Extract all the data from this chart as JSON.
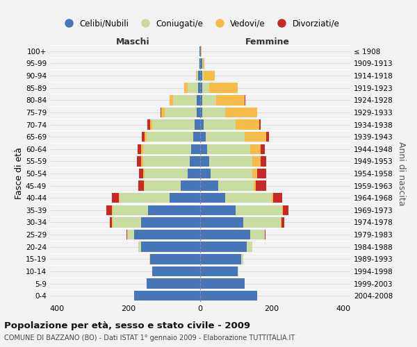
{
  "age_groups": [
    "0-4",
    "5-9",
    "10-14",
    "15-19",
    "20-24",
    "25-29",
    "30-34",
    "35-39",
    "40-44",
    "45-49",
    "50-54",
    "55-59",
    "60-64",
    "65-69",
    "70-74",
    "75-79",
    "80-84",
    "85-89",
    "90-94",
    "95-99",
    "100+"
  ],
  "birth_years": [
    "2004-2008",
    "1999-2003",
    "1994-1998",
    "1989-1993",
    "1984-1988",
    "1979-1983",
    "1974-1978",
    "1969-1973",
    "1964-1968",
    "1959-1963",
    "1954-1958",
    "1949-1953",
    "1944-1948",
    "1939-1943",
    "1934-1938",
    "1929-1933",
    "1924-1928",
    "1919-1923",
    "1914-1918",
    "1909-1913",
    "≤ 1908"
  ],
  "males": {
    "celibi": [
      185,
      150,
      135,
      140,
      165,
      185,
      165,
      145,
      85,
      55,
      35,
      30,
      25,
      20,
      15,
      10,
      10,
      5,
      5,
      2,
      2
    ],
    "coniugati": [
      0,
      0,
      0,
      2,
      8,
      20,
      80,
      100,
      140,
      100,
      120,
      130,
      135,
      130,
      120,
      90,
      65,
      30,
      5,
      2,
      0
    ],
    "vedovi": [
      0,
      0,
      0,
      0,
      0,
      0,
      2,
      2,
      2,
      3,
      5,
      5,
      5,
      5,
      5,
      8,
      10,
      10,
      2,
      0,
      0
    ],
    "divorziati": [
      0,
      0,
      0,
      0,
      0,
      2,
      5,
      15,
      20,
      15,
      12,
      12,
      10,
      8,
      8,
      2,
      0,
      0,
      0,
      0,
      0
    ]
  },
  "females": {
    "nubili": [
      160,
      125,
      105,
      115,
      130,
      140,
      120,
      100,
      70,
      50,
      30,
      25,
      20,
      15,
      10,
      5,
      5,
      5,
      5,
      5,
      2
    ],
    "coniugate": [
      0,
      0,
      2,
      5,
      15,
      40,
      105,
      130,
      130,
      100,
      115,
      120,
      120,
      110,
      90,
      65,
      40,
      20,
      5,
      2,
      0
    ],
    "vedove": [
      0,
      0,
      0,
      0,
      0,
      0,
      2,
      2,
      5,
      5,
      15,
      25,
      30,
      60,
      65,
      90,
      80,
      80,
      30,
      5,
      2
    ],
    "divorziate": [
      0,
      0,
      0,
      0,
      0,
      2,
      8,
      15,
      25,
      30,
      25,
      15,
      10,
      8,
      5,
      0,
      2,
      0,
      0,
      0,
      0
    ]
  },
  "colors": {
    "celibi_nubili": "#4874b8",
    "coniugati_e": "#c8dba0",
    "vedovi_e": "#f5bc4a",
    "divorziati_e": "#c82828"
  },
  "xlim": 420,
  "title": "Popolazione per età, sesso e stato civile - 2009",
  "subtitle": "COMUNE DI BAZZANO (BO) - Dati ISTAT 1° gennaio 2009 - Elaborazione TUTTITALIA.IT",
  "legend_labels": [
    "Celibi/Nubili",
    "Coniugati/e",
    "Vedovi/e",
    "Divorziati/e"
  ],
  "xlabel_maschi": "Maschi",
  "xlabel_femmine": "Femmine",
  "ylabel_left": "Fasce di età",
  "ylabel_right": "Anni di nascita",
  "background_color": "#f2f2f2",
  "plot_bg_color": "#f2f2f2"
}
